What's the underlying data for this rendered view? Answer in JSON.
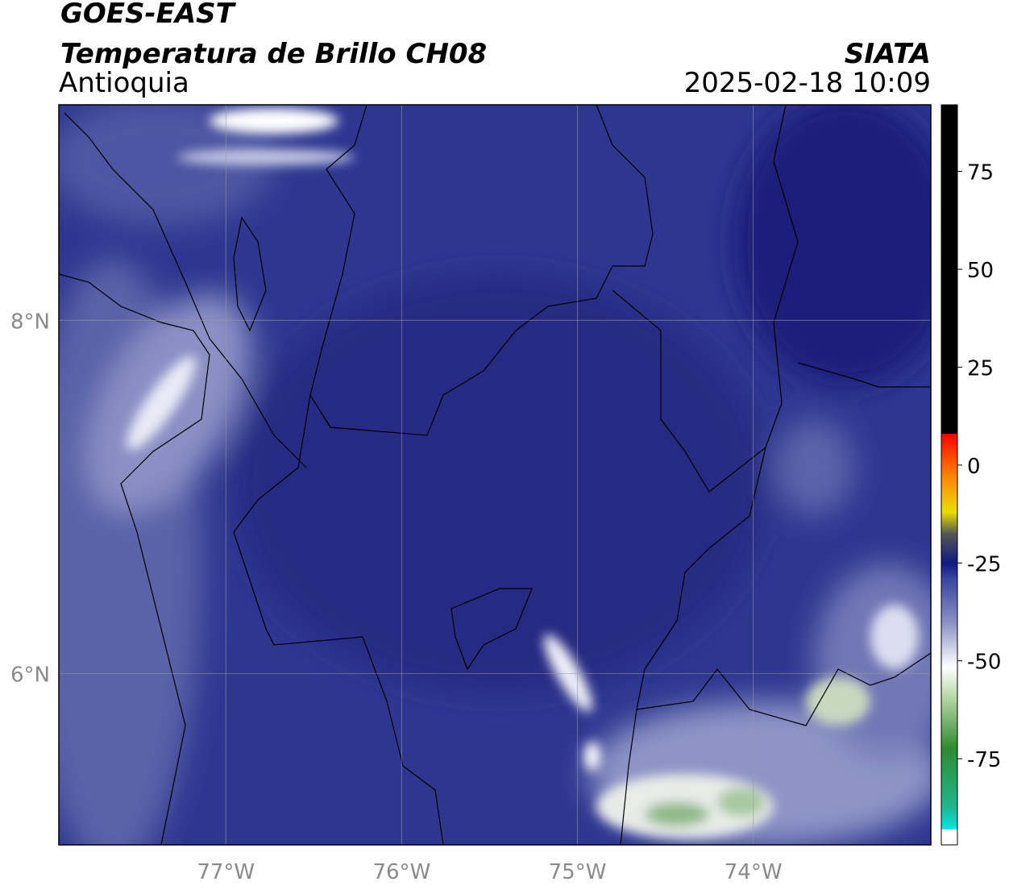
{
  "header": {
    "title": "GOES-EAST",
    "subtitle": "Temperatura de Brillo CH08",
    "region": "Antioquia",
    "agency": "SIATA",
    "datetime": "2025-02-18 10:09"
  },
  "map": {
    "xlim": [
      -77.95,
      -72.99
    ],
    "ylim": [
      5.03,
      9.22
    ],
    "xticks": [
      {
        "value": -77,
        "label": "77°W"
      },
      {
        "value": -76,
        "label": "76°W"
      },
      {
        "value": -75,
        "label": "75°W"
      },
      {
        "value": -74,
        "label": "74°W"
      }
    ],
    "yticks": [
      {
        "value": 8,
        "label": "8°N"
      },
      {
        "value": 6,
        "label": "6°N"
      }
    ],
    "grid": true
  },
  "colorbar": {
    "lim": [
      -97,
      92
    ],
    "ticks": [
      75,
      50,
      25,
      0,
      -25,
      -50,
      -75
    ]
  }
}
